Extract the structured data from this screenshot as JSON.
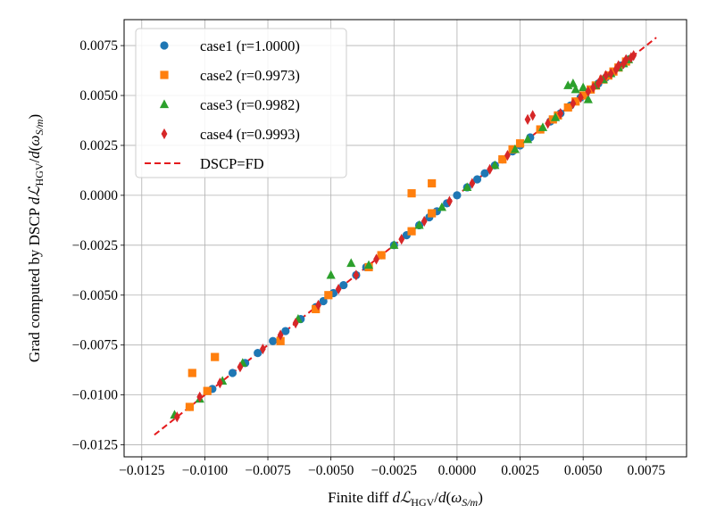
{
  "chart_data": {
    "type": "scatter",
    "title": "",
    "xlabel": "Finite diff dℒHGV/d(ωS/m)",
    "ylabel": "Grad computed by DSCP dℒHGV/d(ωS/m)",
    "xlim": [
      -0.0132,
      0.0091
    ],
    "ylim": [
      -0.0131,
      0.0088
    ],
    "grid": true,
    "legend_position": "upper-left",
    "xticks": [
      "−0.0125",
      "−0.0100",
      "−0.0075",
      "−0.0050",
      "−0.0025",
      "0.0000",
      "0.0025",
      "0.0050",
      "0.0075"
    ],
    "yticks": [
      "−0.0125",
      "−0.0100",
      "−0.0075",
      "−0.0050",
      "−0.0025",
      "0.0000",
      "0.0025",
      "0.0050",
      "0.0075"
    ],
    "series": [
      {
        "name": "case1 (r=1.0000)",
        "color": "#1f77b4",
        "marker": "circle",
        "points": [
          [
            -0.0106,
            -0.0106
          ],
          [
            -0.0097,
            -0.0097
          ],
          [
            -0.0089,
            -0.0089
          ],
          [
            -0.0084,
            -0.0084
          ],
          [
            -0.0079,
            -0.0079
          ],
          [
            -0.0073,
            -0.0073
          ],
          [
            -0.0068,
            -0.0068
          ],
          [
            -0.0062,
            -0.0062
          ],
          [
            -0.0056,
            -0.0056
          ],
          [
            -0.0053,
            -0.0053
          ],
          [
            -0.0049,
            -0.0049
          ],
          [
            -0.0045,
            -0.0045
          ],
          [
            -0.004,
            -0.004
          ],
          [
            -0.0036,
            -0.0036
          ],
          [
            -0.003,
            -0.003
          ],
          [
            -0.0025,
            -0.0025
          ],
          [
            -0.002,
            -0.002
          ],
          [
            -0.0015,
            -0.0015
          ],
          [
            -0.0011,
            -0.0011
          ],
          [
            -0.0008,
            -0.0008
          ],
          [
            -0.0004,
            -0.0004
          ],
          [
            0.0,
            0.0
          ],
          [
            0.0004,
            0.0004
          ],
          [
            0.0008,
            0.0008
          ],
          [
            0.0011,
            0.0011
          ],
          [
            0.0015,
            0.0015
          ],
          [
            0.0018,
            0.0018
          ],
          [
            0.0022,
            0.0022
          ],
          [
            0.0025,
            0.0025
          ],
          [
            0.0029,
            0.0029
          ],
          [
            0.0033,
            0.0033
          ],
          [
            0.0037,
            0.0037
          ],
          [
            0.0041,
            0.0041
          ],
          [
            0.0045,
            0.0045
          ],
          [
            0.0049,
            0.0049
          ],
          [
            0.0053,
            0.0053
          ],
          [
            0.0056,
            0.0056
          ],
          [
            0.0059,
            0.0059
          ],
          [
            0.0062,
            0.0062
          ],
          [
            0.0065,
            0.0065
          ],
          [
            0.0068,
            0.0068
          ]
        ]
      },
      {
        "name": "case2 (r=0.9973)",
        "color": "#ff7f0e",
        "marker": "square",
        "points": [
          [
            -0.0105,
            -0.0089
          ],
          [
            -0.0096,
            -0.0081
          ],
          [
            -0.0106,
            -0.0106
          ],
          [
            -0.0099,
            -0.0098
          ],
          [
            -0.007,
            -0.0073
          ],
          [
            -0.0056,
            -0.0057
          ],
          [
            -0.0051,
            -0.005
          ],
          [
            -0.0035,
            -0.0036
          ],
          [
            -0.003,
            -0.003
          ],
          [
            -0.0018,
            -0.0018
          ],
          [
            -0.001,
            -0.0009
          ],
          [
            -0.0018,
            0.0001
          ],
          [
            -0.001,
            0.0006
          ],
          [
            0.0018,
            0.0018
          ],
          [
            0.0022,
            0.0023
          ],
          [
            0.0025,
            0.0026
          ],
          [
            0.0033,
            0.0033
          ],
          [
            0.0038,
            0.0038
          ],
          [
            0.004,
            0.004
          ],
          [
            0.0044,
            0.0044
          ],
          [
            0.0047,
            0.0047
          ],
          [
            0.005,
            0.005
          ],
          [
            0.0053,
            0.0053
          ],
          [
            0.0055,
            0.0055
          ],
          [
            0.0058,
            0.0058
          ],
          [
            0.006,
            0.006
          ],
          [
            0.0062,
            0.0062
          ],
          [
            0.0064,
            0.0064
          ],
          [
            0.0067,
            0.0067
          ]
        ]
      },
      {
        "name": "case3 (r=0.9982)",
        "color": "#2ca02c",
        "marker": "triangle",
        "points": [
          [
            -0.0112,
            -0.011
          ],
          [
            -0.0102,
            -0.0102
          ],
          [
            -0.0093,
            -0.0093
          ],
          [
            -0.0085,
            -0.0084
          ],
          [
            -0.0063,
            -0.0062
          ],
          [
            -0.005,
            -0.004
          ],
          [
            -0.0042,
            -0.0034
          ],
          [
            -0.0035,
            -0.0035
          ],
          [
            -0.0025,
            -0.0025
          ],
          [
            -0.0015,
            -0.0015
          ],
          [
            -0.0006,
            -0.0006
          ],
          [
            0.0004,
            0.0004
          ],
          [
            0.0015,
            0.0015
          ],
          [
            0.0023,
            0.0023
          ],
          [
            0.0028,
            0.0028
          ],
          [
            0.0034,
            0.0034
          ],
          [
            0.0039,
            0.0039
          ],
          [
            0.0044,
            0.0055
          ],
          [
            0.0046,
            0.0056
          ],
          [
            0.0047,
            0.0053
          ],
          [
            0.005,
            0.0054
          ],
          [
            0.0052,
            0.0048
          ],
          [
            0.0055,
            0.0055
          ],
          [
            0.0058,
            0.0058
          ],
          [
            0.0061,
            0.0061
          ],
          [
            0.0064,
            0.0064
          ],
          [
            0.0066,
            0.0066
          ],
          [
            0.0068,
            0.0068
          ]
        ]
      },
      {
        "name": "case4 (r=0.9993)",
        "color": "#d62728",
        "marker": "thin_diamond",
        "points": [
          [
            -0.0111,
            -0.0111
          ],
          [
            -0.0102,
            -0.0101
          ],
          [
            -0.0094,
            -0.0094
          ],
          [
            -0.0086,
            -0.0086
          ],
          [
            -0.0077,
            -0.0077
          ],
          [
            -0.007,
            -0.007
          ],
          [
            -0.0064,
            -0.0064
          ],
          [
            -0.0055,
            -0.0055
          ],
          [
            -0.0047,
            -0.0047
          ],
          [
            -0.004,
            -0.004
          ],
          [
            -0.0032,
            -0.0032
          ],
          [
            -0.0022,
            -0.0022
          ],
          [
            -0.0013,
            -0.0013
          ],
          [
            -0.0003,
            -0.0003
          ],
          [
            0.0006,
            0.0006
          ],
          [
            0.0013,
            0.0013
          ],
          [
            0.002,
            0.002
          ],
          [
            0.0028,
            0.0038
          ],
          [
            0.003,
            0.004
          ],
          [
            0.0036,
            0.0036
          ],
          [
            0.0041,
            0.0041
          ],
          [
            0.0046,
            0.0046
          ],
          [
            0.0049,
            0.0049
          ],
          [
            0.0052,
            0.0052
          ],
          [
            0.0054,
            0.0054
          ],
          [
            0.0056,
            0.0056
          ],
          [
            0.0057,
            0.0058
          ],
          [
            0.0059,
            0.006
          ],
          [
            0.0061,
            0.0061
          ],
          [
            0.0063,
            0.0063
          ],
          [
            0.0064,
            0.0065
          ],
          [
            0.0066,
            0.0066
          ],
          [
            0.0067,
            0.0068
          ],
          [
            0.0069,
            0.0069
          ],
          [
            0.007,
            0.007
          ]
        ]
      }
    ],
    "reference_line": {
      "name": "DSCP=FD",
      "color": "#e41a1c",
      "style": "dashed",
      "x": [
        -0.012,
        0.0079
      ],
      "y": [
        -0.012,
        0.0079
      ]
    }
  }
}
